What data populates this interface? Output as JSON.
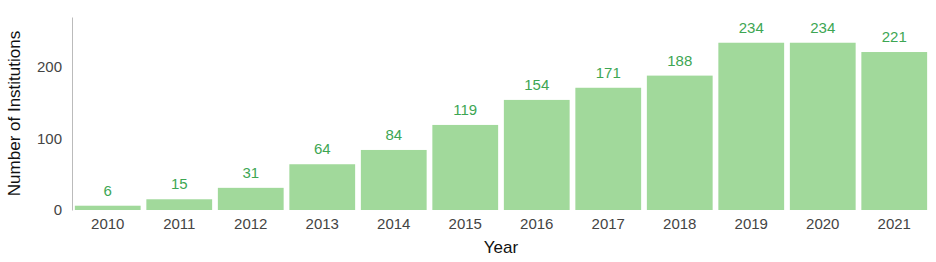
{
  "chart_data": {
    "type": "bar",
    "x_label": "Year",
    "y_label": "Number of Institutions",
    "categories": [
      "2010",
      "2011",
      "2012",
      "2013",
      "2014",
      "2015",
      "2016",
      "2017",
      "2018",
      "2019",
      "2020",
      "2021"
    ],
    "values": [
      6,
      15,
      31,
      64,
      84,
      119,
      154,
      171,
      188,
      234,
      234,
      221
    ],
    "color": "#a1d99b",
    "ylim": [
      0,
      270
    ],
    "yticks": [
      0,
      100,
      200
    ],
    "grid": false,
    "data_labels": true
  }
}
